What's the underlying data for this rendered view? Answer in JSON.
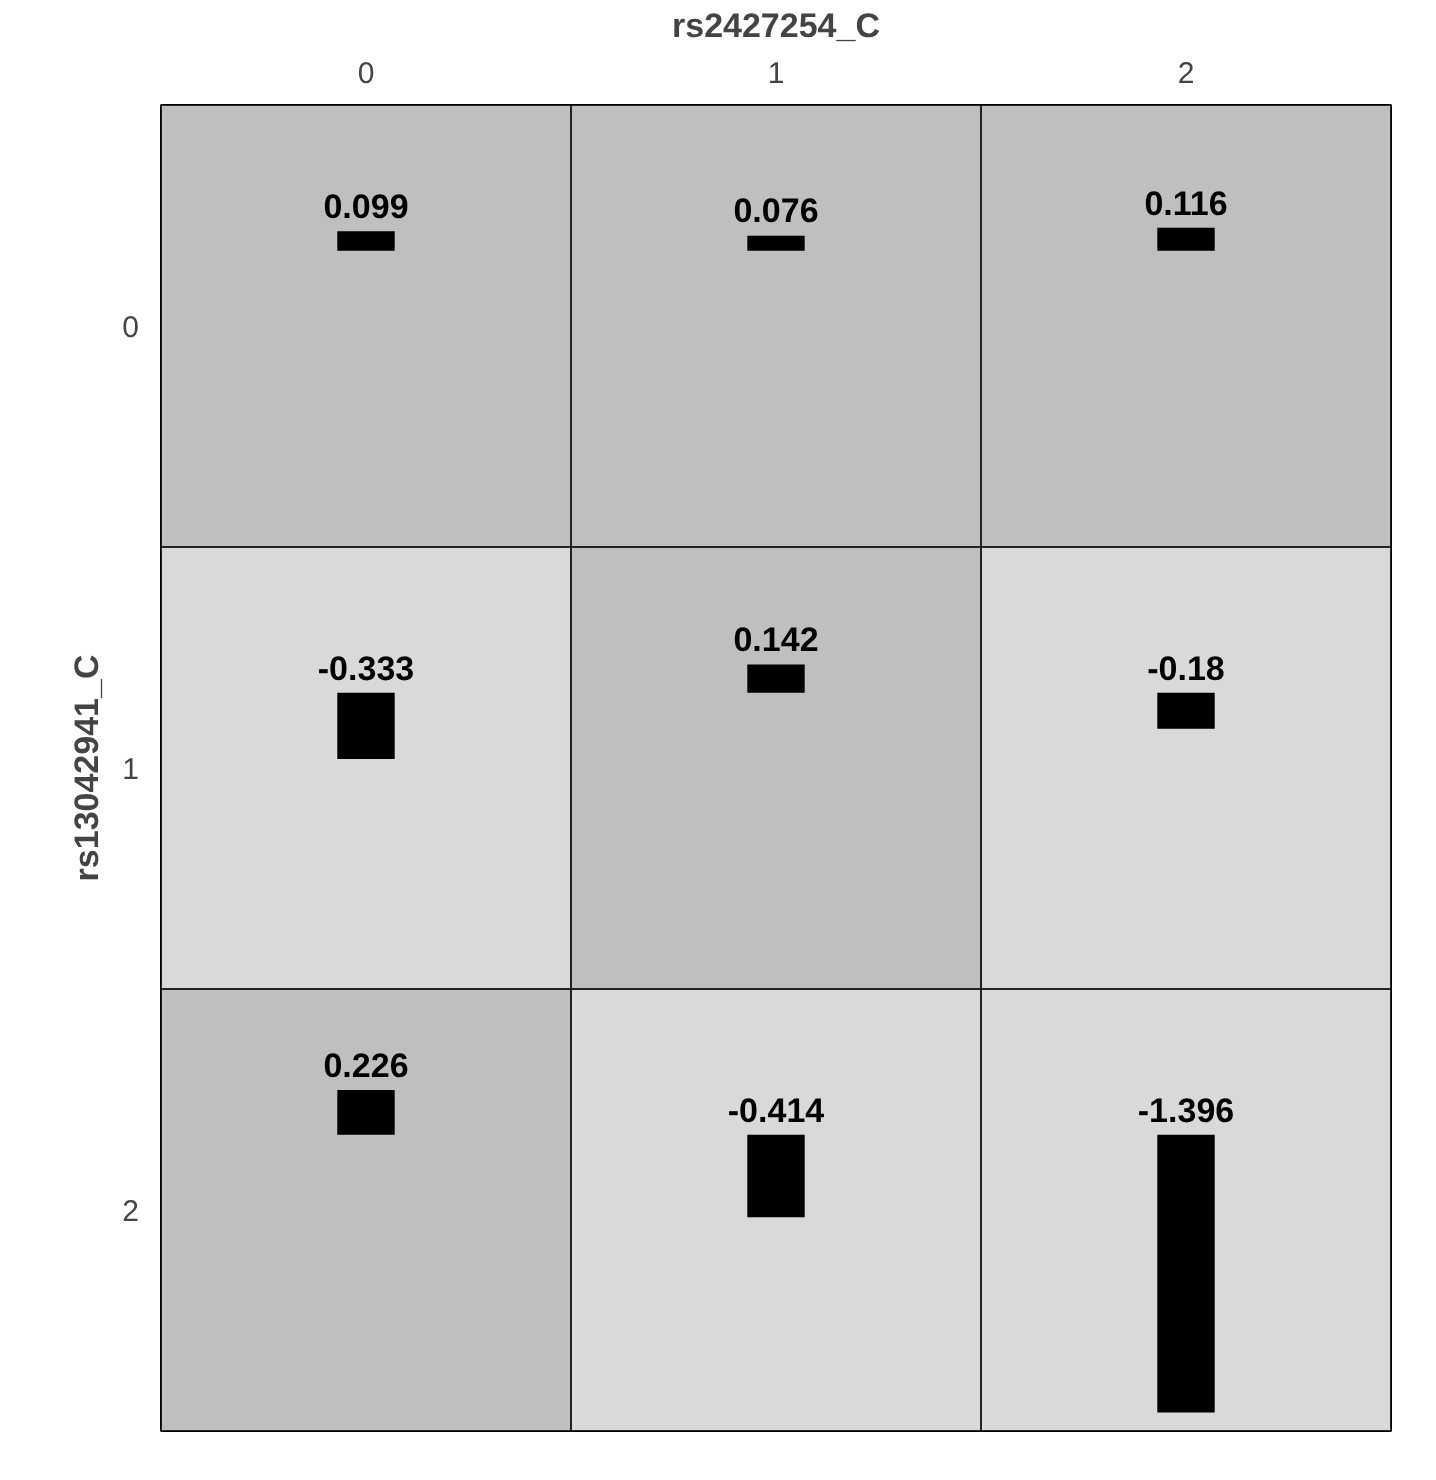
{
  "chart_data": {
    "type": "heatmap",
    "xlabel": "rs2427254_C",
    "ylabel": "rs13042941_C",
    "categories": [
      "0",
      "1",
      "2"
    ],
    "y_categories": [
      "0",
      "1",
      "2"
    ],
    "cells": [
      [
        0.099,
        0.076,
        0.116
      ],
      [
        -0.333,
        0.142,
        -0.18
      ],
      [
        0.226,
        -0.414,
        -1.396
      ]
    ],
    "colors": [
      "#d9d9d9",
      "#bfbfbf"
    ],
    "data_labels": true
  }
}
